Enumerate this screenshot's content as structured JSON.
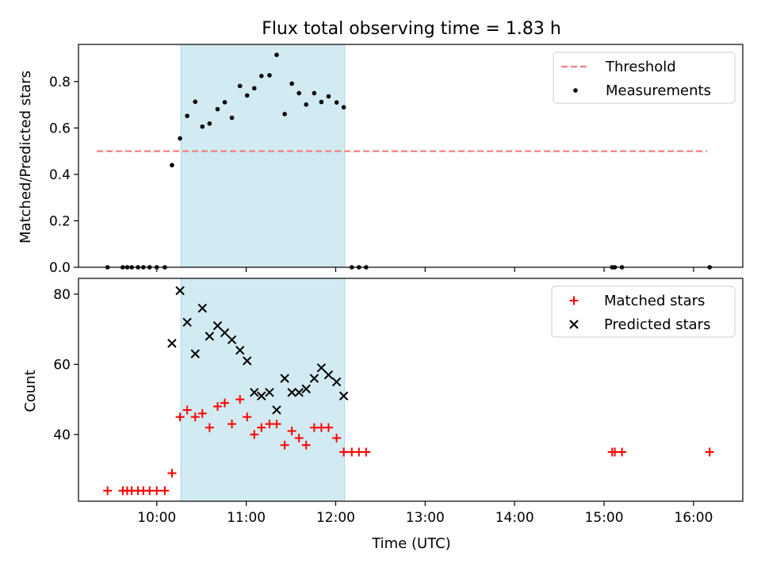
{
  "chart_data": {
    "title": "Flux total observing time = 1.83 h",
    "xlabel": "Time (UTC)",
    "xticks": [
      {
        "label": "10:00",
        "hour": 10.0
      },
      {
        "label": "11:00",
        "hour": 11.0
      },
      {
        "label": "12:00",
        "hour": 12.0
      },
      {
        "label": "13:00",
        "hour": 13.0
      },
      {
        "label": "14:00",
        "hour": 14.0
      },
      {
        "label": "15:00",
        "hour": 15.0
      },
      {
        "label": "16:00",
        "hour": 16.0
      }
    ],
    "xlim_hours": [
      9.125,
      16.55
    ],
    "shaded_interval_hours": [
      10.27,
      12.1
    ],
    "shaded_color": "#add8e6",
    "panels": [
      {
        "type": "scatter",
        "ylabel": "Matched/Predicted stars",
        "ylim": [
          0,
          0.96
        ],
        "yticks": [
          0.0,
          0.2,
          0.4,
          0.6,
          0.8
        ],
        "ytick_labels": [
          "0.0",
          "0.2",
          "0.4",
          "0.6",
          "0.8"
        ],
        "threshold": {
          "name": "Threshold",
          "y": 0.5,
          "x_range_hours": [
            9.33,
            16.15
          ],
          "color": "#f08080"
        },
        "series": [
          {
            "name": "Measurements",
            "marker": "dot",
            "color": "#000000",
            "points": [
              [
                9.45,
                0.0
              ],
              [
                9.62,
                0.0
              ],
              [
                9.67,
                0.0
              ],
              [
                9.72,
                0.0
              ],
              [
                9.79,
                0.0
              ],
              [
                9.85,
                0.0
              ],
              [
                9.92,
                0.0
              ],
              [
                10.0,
                0.0
              ],
              [
                10.09,
                0.0
              ],
              [
                10.17,
                0.44
              ],
              [
                10.26,
                0.555
              ],
              [
                10.34,
                0.652
              ],
              [
                10.43,
                0.713
              ],
              [
                10.51,
                0.606
              ],
              [
                10.59,
                0.619
              ],
              [
                10.68,
                0.681
              ],
              [
                10.76,
                0.711
              ],
              [
                10.84,
                0.644
              ],
              [
                10.93,
                0.781
              ],
              [
                11.01,
                0.74
              ],
              [
                11.09,
                0.771
              ],
              [
                11.17,
                0.824
              ],
              [
                11.26,
                0.827
              ],
              [
                11.34,
                0.915
              ],
              [
                11.43,
                0.66
              ],
              [
                11.51,
                0.791
              ],
              [
                11.59,
                0.75
              ],
              [
                11.67,
                0.701
              ],
              [
                11.76,
                0.75
              ],
              [
                11.84,
                0.712
              ],
              [
                11.92,
                0.736
              ],
              [
                12.01,
                0.71
              ],
              [
                12.09,
                0.689
              ],
              [
                12.18,
                0.0
              ],
              [
                12.26,
                0.0
              ],
              [
                12.34,
                0.0
              ],
              [
                15.09,
                0.0
              ],
              [
                15.12,
                0.0
              ],
              [
                15.2,
                0.0
              ],
              [
                16.18,
                0.0
              ]
            ]
          }
        ],
        "legend": {
          "position": "top-right",
          "entries": [
            "Threshold",
            "Measurements"
          ]
        }
      },
      {
        "type": "scatter",
        "ylabel": "Count",
        "ylim": [
          21.0,
          84.5
        ],
        "yticks": [
          40,
          60,
          80
        ],
        "ytick_labels": [
          "40",
          "60",
          "80"
        ],
        "series": [
          {
            "name": "Matched stars",
            "marker": "plus",
            "color": "#ff0000",
            "points": [
              [
                9.45,
                24
              ],
              [
                9.62,
                24
              ],
              [
                9.67,
                24
              ],
              [
                9.72,
                24
              ],
              [
                9.79,
                24
              ],
              [
                9.85,
                24
              ],
              [
                9.92,
                24
              ],
              [
                10.0,
                24
              ],
              [
                10.09,
                24
              ],
              [
                10.17,
                29
              ],
              [
                10.26,
                45
              ],
              [
                10.34,
                47
              ],
              [
                10.43,
                45
              ],
              [
                10.51,
                46
              ],
              [
                10.59,
                42
              ],
              [
                10.68,
                48
              ],
              [
                10.76,
                49
              ],
              [
                10.84,
                43
              ],
              [
                10.93,
                50
              ],
              [
                11.01,
                45
              ],
              [
                11.09,
                40
              ],
              [
                11.17,
                42
              ],
              [
                11.26,
                43
              ],
              [
                11.34,
                43
              ],
              [
                11.43,
                37
              ],
              [
                11.51,
                41
              ],
              [
                11.59,
                39
              ],
              [
                11.67,
                37
              ],
              [
                11.76,
                42
              ],
              [
                11.84,
                42
              ],
              [
                11.92,
                42
              ],
              [
                12.01,
                39
              ],
              [
                12.09,
                35
              ],
              [
                12.18,
                35
              ],
              [
                12.26,
                35
              ],
              [
                12.34,
                35
              ],
              [
                15.09,
                35
              ],
              [
                15.12,
                35
              ],
              [
                15.2,
                35
              ],
              [
                16.18,
                35
              ]
            ]
          },
          {
            "name": "Predicted stars",
            "marker": "x",
            "color": "#000000",
            "points": [
              [
                10.17,
                66
              ],
              [
                10.26,
                81
              ],
              [
                10.34,
                72
              ],
              [
                10.43,
                63
              ],
              [
                10.51,
                76
              ],
              [
                10.59,
                68
              ],
              [
                10.68,
                71
              ],
              [
                10.76,
                69
              ],
              [
                10.84,
                67
              ],
              [
                10.93,
                64
              ],
              [
                11.01,
                61
              ],
              [
                11.09,
                52
              ],
              [
                11.17,
                51
              ],
              [
                11.26,
                52
              ],
              [
                11.34,
                47
              ],
              [
                11.43,
                56
              ],
              [
                11.51,
                52
              ],
              [
                11.59,
                52
              ],
              [
                11.67,
                53
              ],
              [
                11.76,
                56
              ],
              [
                11.84,
                59
              ],
              [
                11.92,
                57
              ],
              [
                12.01,
                55
              ],
              [
                12.09,
                51
              ]
            ]
          }
        ],
        "legend": {
          "position": "top-right",
          "entries": [
            "Matched stars",
            "Predicted stars"
          ]
        }
      }
    ]
  }
}
